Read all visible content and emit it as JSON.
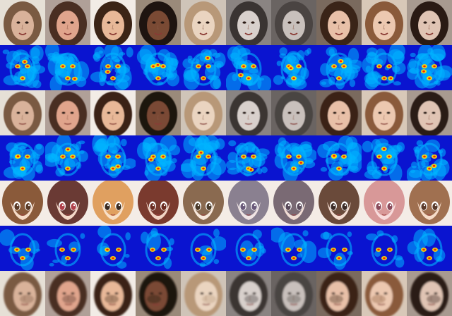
{
  "grid": {
    "columns": 10,
    "rows": [
      {
        "kind": "photo",
        "variant": "source"
      },
      {
        "kind": "heatmap",
        "variant": "attention-photo"
      },
      {
        "kind": "photo",
        "variant": "reconstruction"
      },
      {
        "kind": "heatmap",
        "variant": "attention-photo-2"
      },
      {
        "kind": "anime",
        "variant": "translated"
      },
      {
        "kind": "heatmap",
        "variant": "attention-anime"
      },
      {
        "kind": "photo",
        "variant": "distorted"
      }
    ],
    "faces": [
      {
        "skin": "#d9b29a",
        "hair": "#7a5a42",
        "bg": "#e6e0d6"
      },
      {
        "skin": "#e0a48c",
        "hair": "#4a2e22",
        "bg": "#b0a098"
      },
      {
        "skin": "#e8b898",
        "hair": "#3b2416",
        "bg": "#f2ece6"
      },
      {
        "skin": "#7a4a34",
        "hair": "#1e1410",
        "bg": "#9a8a7a"
      },
      {
        "skin": "#ead4c0",
        "hair": "#b89878",
        "bg": "#cfc4b8"
      },
      {
        "skin": "#d8d0cc",
        "hair": "#3a3432",
        "bg": "#8a8482"
      },
      {
        "skin": "#c8c0bc",
        "hair": "#4a4442",
        "bg": "#6a6462"
      },
      {
        "skin": "#e8c0a8",
        "hair": "#3a2418",
        "bg": "#7a6a5e"
      },
      {
        "skin": "#ecc8b0",
        "hair": "#8a5a3a",
        "bg": "#d8c8b8"
      },
      {
        "skin": "#e0c4b4",
        "hair": "#2a1a14",
        "bg": "#a89a90"
      }
    ],
    "anime": [
      {
        "skin": "#f6dcc8",
        "hair": "#8a5a3a",
        "eyes": "#5a3a26"
      },
      {
        "skin": "#f4d8c8",
        "hair": "#6a3a34",
        "eyes": "#b0404a"
      },
      {
        "skin": "#f8e0c8",
        "hair": "#e0a060",
        "eyes": "#3a2a20"
      },
      {
        "skin": "#f2d4c4",
        "hair": "#7a3a2e",
        "eyes": "#6a2a20"
      },
      {
        "skin": "#f8e8dc",
        "hair": "#8a6a50",
        "eyes": "#4a3a2a"
      },
      {
        "skin": "#f0e4e4",
        "hair": "#8a8090",
        "eyes": "#6a5a7a"
      },
      {
        "skin": "#f0dcd4",
        "hair": "#7a6a74",
        "eyes": "#5a4a5a"
      },
      {
        "skin": "#f4dcd0",
        "hair": "#6a4a3a",
        "eyes": "#3a2a26"
      },
      {
        "skin": "#f8dcdc",
        "hair": "#d89898",
        "eyes": "#8a4a5a"
      },
      {
        "skin": "#f6dcc8",
        "hair": "#a07050",
        "eyes": "#5a3a2a"
      }
    ],
    "colors": {
      "heat_bg": "#0a14d0",
      "heat_mid": "#00b4ff",
      "heat_hot": "#ffe000",
      "heat_peak": "#ff2000"
    }
  }
}
